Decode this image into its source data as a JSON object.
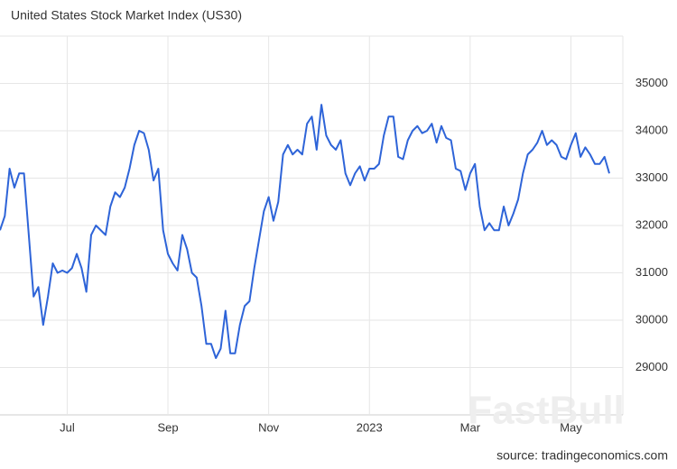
{
  "chart_data": {
    "type": "line",
    "title": "United States Stock Market Index (US30)",
    "source": "source: tradingeconomics.com",
    "watermark": "FastBull",
    "categories": [
      null,
      null,
      null,
      null,
      null,
      null,
      null,
      null,
      null,
      null,
      null,
      null,
      null,
      null,
      "Jul",
      null,
      null,
      null,
      null,
      null,
      null,
      null,
      null,
      null,
      null,
      null,
      null,
      null,
      null,
      null,
      null,
      null,
      null,
      null,
      null,
      "Sep",
      null,
      null,
      null,
      null,
      null,
      null,
      null,
      null,
      null,
      null,
      null,
      null,
      null,
      null,
      null,
      null,
      null,
      null,
      null,
      null,
      "Nov",
      null,
      null,
      null,
      null,
      null,
      null,
      null,
      null,
      null,
      null,
      null,
      null,
      null,
      null,
      null,
      null,
      null,
      null,
      null,
      null,
      "2023",
      null,
      null,
      null,
      null,
      null,
      null,
      null,
      null,
      null,
      null,
      null,
      null,
      null,
      null,
      null,
      null,
      null,
      null,
      null,
      null,
      "Mar",
      null,
      null,
      null,
      null,
      null,
      null,
      null,
      null,
      null,
      null,
      null,
      null,
      null,
      null,
      null,
      null,
      null,
      null,
      null,
      null,
      "May",
      null,
      null,
      null,
      null,
      null,
      null,
      null,
      null
    ],
    "series": [
      {
        "name": "US30",
        "color": "#2e64d8",
        "values": [
          31900,
          32200,
          33200,
          32800,
          33100,
          33100,
          31800,
          30500,
          30700,
          29900,
          30500,
          31200,
          31000,
          31050,
          31000,
          31100,
          31400,
          31100,
          30600,
          31800,
          32000,
          31900,
          31800,
          32400,
          32700,
          32600,
          32800,
          33200,
          33700,
          34000,
          33950,
          33600,
          32950,
          33200,
          31900,
          31400,
          31200,
          31050,
          31800,
          31500,
          31000,
          30900,
          30300,
          29500,
          29500,
          29200,
          29400,
          30200,
          29300,
          29300,
          29900,
          30300,
          30400,
          31100,
          31700,
          32300,
          32600,
          32100,
          32500,
          33500,
          33700,
          33500,
          33600,
          33500,
          34150,
          34300,
          33600,
          34550,
          33900,
          33700,
          33600,
          33800,
          33100,
          32850,
          33100,
          33250,
          32950,
          33200,
          33200,
          33300,
          33900,
          34300,
          34300,
          33450,
          33400,
          33800,
          34000,
          34100,
          33950,
          34000,
          34150,
          33750,
          34100,
          33850,
          33800,
          33200,
          33150,
          32750,
          33100,
          33300,
          32400,
          31900,
          32050,
          31900,
          31900,
          32400,
          32000,
          32250,
          32550,
          33100,
          33500,
          33600,
          33750,
          34000,
          33700,
          33800,
          33700,
          33450,
          33400,
          33700,
          33950,
          33450,
          33650,
          33500,
          33300,
          33300,
          33450,
          33100
        ]
      }
    ],
    "ylim": [
      28000,
      36000
    ],
    "yticks": [
      29000,
      30000,
      31000,
      32000,
      33000,
      34000,
      35000
    ],
    "grid": true
  }
}
